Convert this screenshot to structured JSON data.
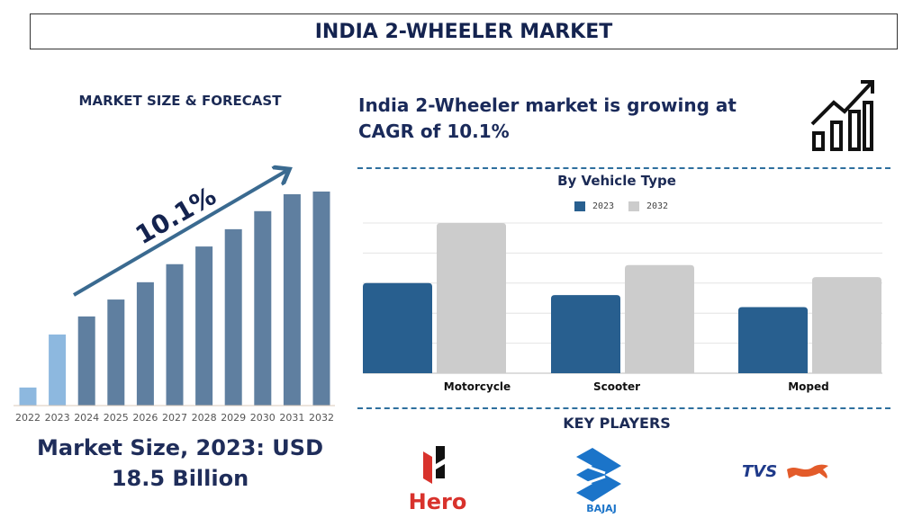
{
  "title": "INDIA 2-WHEELER MARKET",
  "left_panel": {
    "heading": "MARKET SIZE & FORECAST",
    "cagr_label": "10.1%",
    "market_size_line1": "Market Size, 2023: USD",
    "market_size_line2": "18.5 Billion"
  },
  "headline": {
    "line1": "India 2-Wheeler market is growing at",
    "line2": "CAGR of 10.1%"
  },
  "key_players": {
    "heading": "KEY PLAYERS",
    "logos": [
      "Hero",
      "BAJAJ",
      "TVS"
    ]
  },
  "colors": {
    "historic_bar": "#8db8df",
    "forecast_bar": "#5f7fa0",
    "arrow": "#3a6a90",
    "series_2023": "#285f8f",
    "series_2032": "#cccccc",
    "hero_red": "#d8322c",
    "bajaj_blue": "#1b74c9",
    "tvs_navy": "#1f3a8a",
    "tvs_horse": "#e35b2a"
  },
  "chart_data": [
    {
      "type": "bar",
      "title": "",
      "categories": [
        "2022",
        "2023",
        "2024",
        "2025",
        "2026",
        "2027",
        "2028",
        "2029",
        "2030",
        "2031",
        "2032"
      ],
      "values": [
        4.7,
        18.5,
        23.2,
        27.6,
        32.1,
        36.8,
        41.4,
        45.9,
        50.6,
        55.0,
        55.7
      ],
      "historic_categories": [
        "2022",
        "2023"
      ],
      "ylim": [
        0,
        60
      ],
      "grid": false,
      "annotation": "10.1%"
    },
    {
      "type": "bar",
      "title": "By Vehicle Type",
      "categories": [
        "Motorcycle",
        "Scooter",
        "Moped"
      ],
      "series": [
        {
          "name": "2023",
          "values": [
            3.0,
            2.6,
            2.2
          ]
        },
        {
          "name": "2032",
          "values": [
            5.0,
            3.6,
            3.2
          ]
        }
      ],
      "ylim": [
        0,
        5
      ],
      "grid": true,
      "legend": "top"
    }
  ]
}
